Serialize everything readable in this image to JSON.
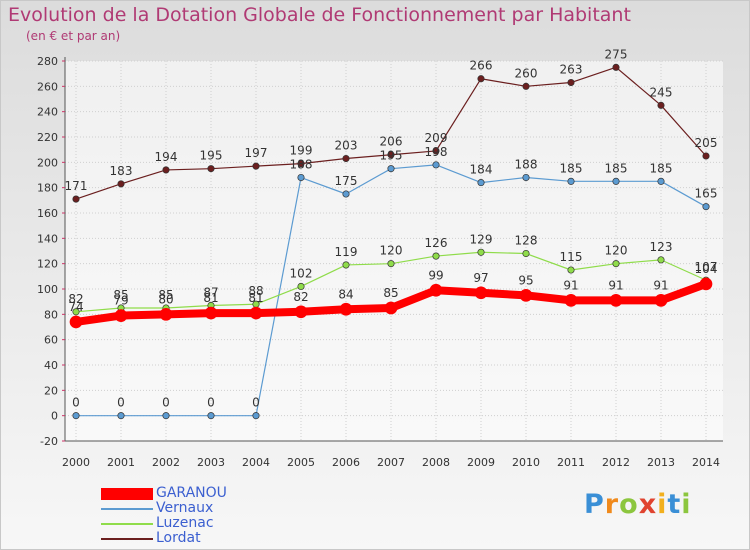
{
  "title": "Evolution de la Dotation Globale de Fonctionnement par Habitant",
  "subtitle": "(en € et par an)",
  "logo_text": "Proxiti",
  "chart_data": {
    "type": "line",
    "x": [
      "2000",
      "2001",
      "2002",
      "2003",
      "2004",
      "2005",
      "2006",
      "2007",
      "2008",
      "2009",
      "2010",
      "2011",
      "2012",
      "2013",
      "2014"
    ],
    "ylim": [
      -20,
      280
    ],
    "yticks": [
      -20,
      0,
      20,
      40,
      60,
      80,
      100,
      120,
      140,
      160,
      180,
      200,
      220,
      240,
      260,
      280
    ],
    "grid": true,
    "legend_position": "bottom-left",
    "series": [
      {
        "name": "Lordat",
        "color": "#6b1f1f",
        "values": [
          171,
          183,
          194,
          195,
          197,
          199,
          203,
          206,
          209,
          266,
          260,
          263,
          275,
          245,
          205
        ]
      },
      {
        "name": "Vernaux",
        "color": "#5c9bd1",
        "values": [
          0,
          0,
          0,
          0,
          0,
          188,
          175,
          195,
          198,
          184,
          188,
          185,
          185,
          185,
          165
        ]
      },
      {
        "name": "Luzenac",
        "color": "#8fdc4a",
        "values": [
          82,
          85,
          85,
          87,
          88,
          102,
          119,
          120,
          126,
          129,
          128,
          115,
          120,
          123,
          107
        ]
      },
      {
        "name": "GARANOU",
        "color": "#ff0000",
        "values": [
          74,
          79,
          80,
          81,
          81,
          82,
          84,
          85,
          99,
          97,
          95,
          91,
          91,
          91,
          104
        ]
      }
    ],
    "legend_order": [
      "GARANOU",
      "Vernaux",
      "Luzenac",
      "Lordat"
    ]
  }
}
